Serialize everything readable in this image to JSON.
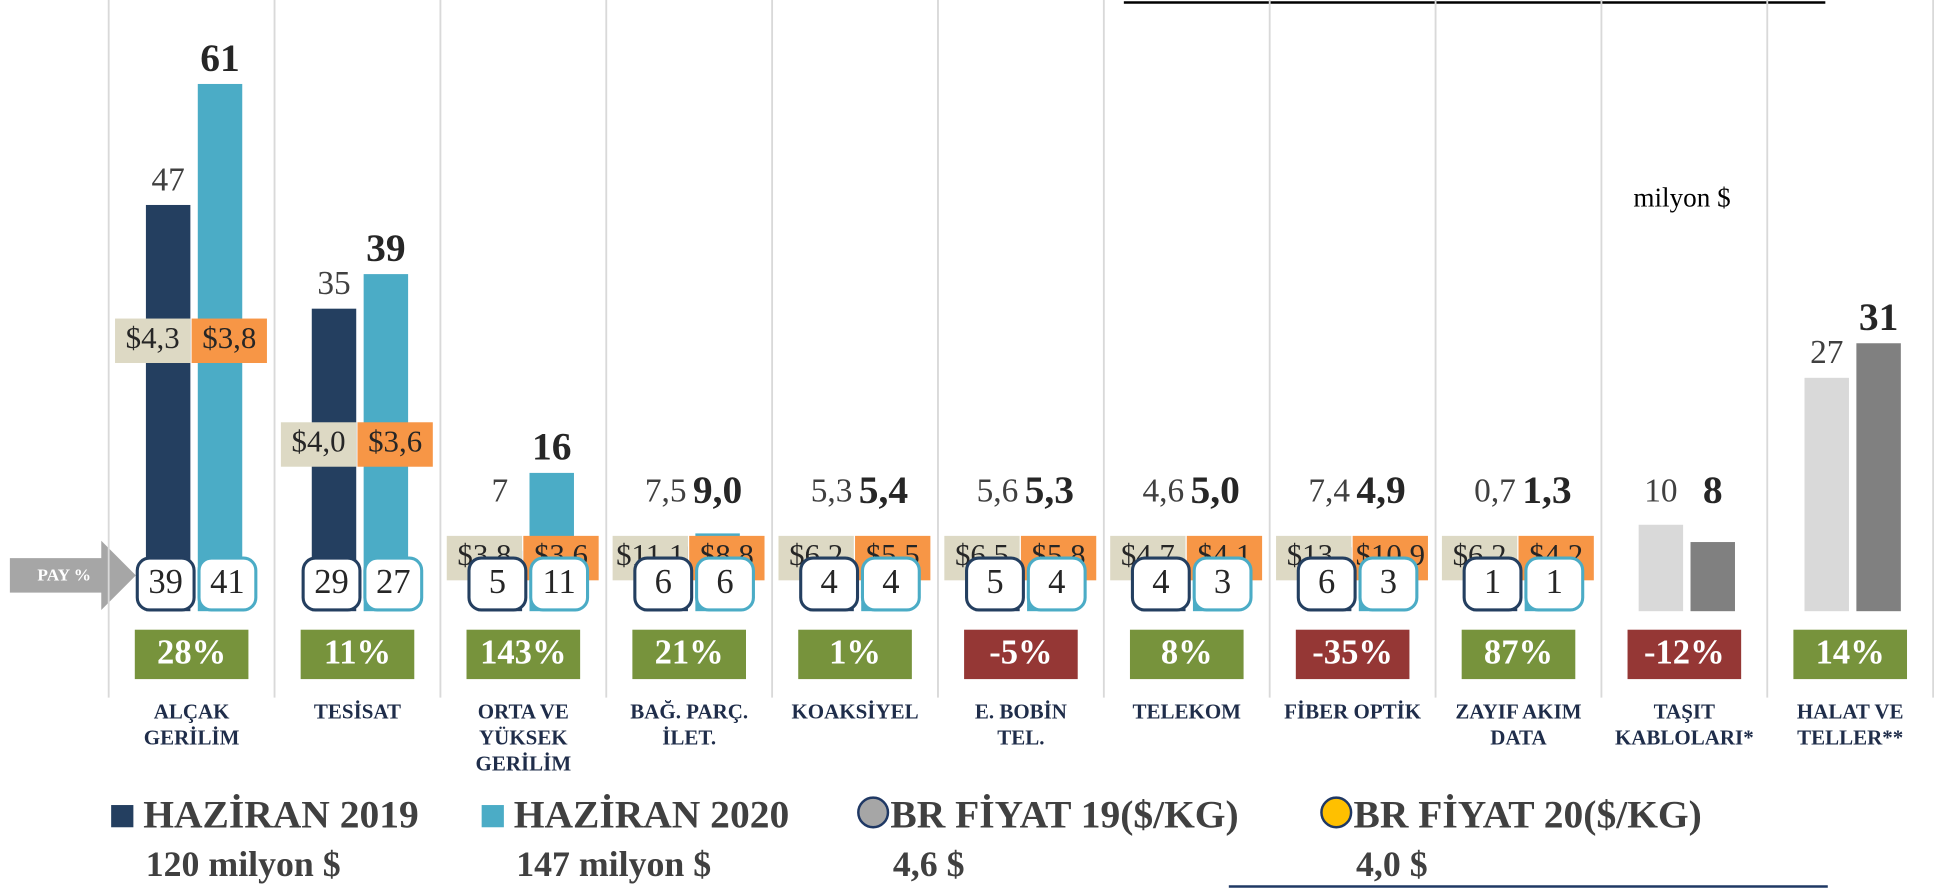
{
  "chart_data": {
    "type": "bar",
    "categories": [
      [
        "ALÇAK",
        "GERİLİM"
      ],
      [
        "TESİSAT"
      ],
      [
        "ORTA VE",
        "YÜKSEK",
        "GERİLİM"
      ],
      [
        "BAĞ. PARÇ.",
        "İLET."
      ],
      [
        "KOAKSİYEL"
      ],
      [
        "E. BOBİN",
        "TEL."
      ],
      [
        "TELEKOM"
      ],
      [
        "FİBER OPTİK"
      ],
      [
        "ZAYIF AKIM",
        "DATA"
      ],
      [
        "TAŞIT",
        "KABLOLARI*"
      ],
      [
        "HALAT VE",
        "TELLER**"
      ]
    ],
    "series": [
      {
        "name": "HAZİRAN 2019",
        "total_label": "120 milyon $",
        "color": "#243f60",
        "colors": [
          "#243f60",
          "#243f60",
          "#243f60",
          "#243f60",
          "#243f60",
          "#243f60",
          "#243f60",
          "#243f60",
          "#243f60",
          "#d9d9d9",
          "#d9d9d9"
        ],
        "values": [
          47,
          35,
          7,
          7.5,
          5.3,
          5.6,
          4.6,
          7.4,
          0.7,
          10,
          27
        ],
        "value_labels": [
          "47",
          "35",
          "7",
          "7,5",
          "5,3",
          "5,6",
          "4,6",
          "7,4",
          "0,7",
          "10",
          "27"
        ]
      },
      {
        "name": "HAZİRAN 2020",
        "total_label": "147 milyon $",
        "color": "#4bacc6",
        "colors": [
          "#4bacc6",
          "#4bacc6",
          "#4bacc6",
          "#4bacc6",
          "#4bacc6",
          "#4bacc6",
          "#4bacc6",
          "#4bacc6",
          "#4bacc6",
          "#808080",
          "#808080"
        ],
        "values": [
          61,
          39,
          16,
          9.0,
          5.4,
          5.3,
          5.0,
          4.9,
          1.3,
          8,
          31
        ],
        "value_labels": [
          "61",
          "39",
          "16",
          "9,0",
          "5,4",
          "5,3",
          "5,0",
          "4,9",
          "1,3",
          "8",
          "31"
        ]
      }
    ],
    "price_series": [
      {
        "name": "BR FİYAT 19($/KG)",
        "total_label": "4,6 $",
        "color": "#a6a6a6",
        "box_color": "#ddd9c4",
        "values": [
          4.3,
          4.0,
          3.8,
          11.1,
          6.2,
          6.5,
          4.7,
          13,
          6.2,
          null,
          null
        ],
        "value_labels": [
          "$4,3",
          "$4,0",
          "$3,8",
          "$11,1",
          "$6,2",
          "$6,5",
          "$4,7",
          "$13,",
          "$6,2",
          null,
          null
        ]
      },
      {
        "name": "BR FİYAT 20($/KG)",
        "total_label": "4,0 $",
        "color": "#ffc000",
        "box_color": "#f79646",
        "values": [
          3.8,
          3.6,
          3.6,
          8.8,
          5.5,
          5.8,
          4.1,
          10.9,
          4.2,
          null,
          null
        ],
        "value_labels": [
          "$3,8",
          "$3,6",
          "$3,6",
          "$8,8",
          "$5,5",
          "$5,8",
          "$4,1",
          "$10,9",
          "$4,2",
          null,
          null
        ]
      }
    ],
    "share": {
      "label": "PAY %",
      "series": [
        {
          "values": [
            39,
            29,
            5,
            6,
            4,
            5,
            4,
            6,
            1,
            null,
            null
          ]
        },
        {
          "values": [
            41,
            27,
            11,
            6,
            4,
            4,
            3,
            3,
            1,
            null,
            null
          ]
        }
      ]
    },
    "change": {
      "values": [
        28,
        11,
        143,
        21,
        1,
        -5,
        8,
        -35,
        87,
        -12,
        14
      ],
      "value_labels": [
        "28%",
        "11%",
        "143%",
        "21%",
        "1%",
        "-5%",
        "8%",
        "-35%",
        "87%",
        "-12%",
        "14%"
      ],
      "positive_color": "#77933c",
      "negative_color": "#953735"
    },
    "annotation": "milyon $"
  }
}
